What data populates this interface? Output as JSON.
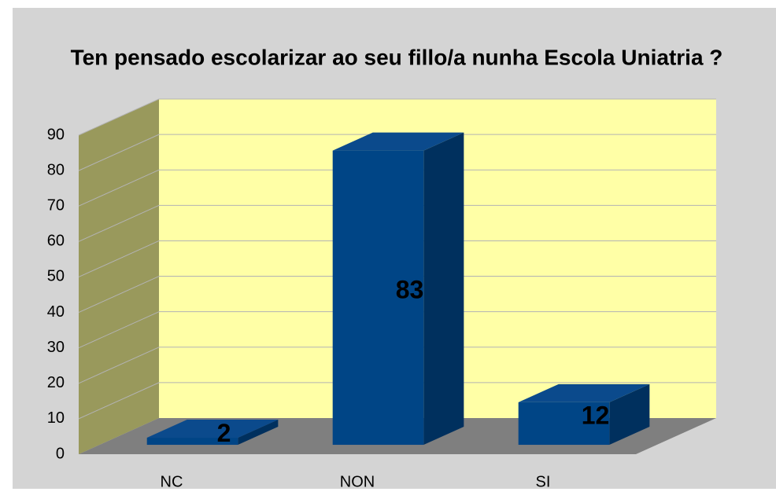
{
  "chart_data": {
    "type": "bar3d",
    "title": "Ten pensado escolarizar ao seu fillo/a nunha Escola Uniatria ?",
    "categories": [
      "NC",
      "NON",
      "SI"
    ],
    "values": [
      2,
      83,
      12
    ],
    "color": "#004586",
    "ylim": [
      0,
      90
    ],
    "yticks": [
      0,
      10,
      20,
      30,
      40,
      50,
      60,
      70,
      80,
      90
    ],
    "grid": true
  }
}
